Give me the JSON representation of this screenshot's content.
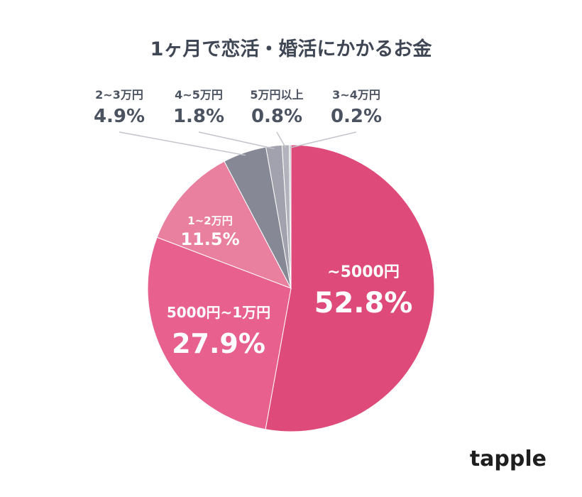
{
  "chart_data": {
    "type": "pie",
    "title": "1ヶ月で恋活・婚活にかかるお金",
    "categories": [
      "~5000円",
      "5000円~1万円",
      "1~2万円",
      "2~3万円",
      "4~5万円",
      "5万円以上",
      "3~4万円"
    ],
    "values": [
      52.8,
      27.9,
      11.5,
      4.9,
      1.8,
      0.8,
      0.2
    ],
    "value_labels": [
      "52.8%",
      "27.9%",
      "11.5%",
      "4.9%",
      "1.8%",
      "0.8%",
      "0.2%"
    ],
    "colors": [
      "#de4a79",
      "#e8608e",
      "#e9809f",
      "#878896",
      "#a1a2ad",
      "#b2b3bd",
      "#c7c8cf"
    ],
    "legend": "none",
    "start_angle_deg": 0,
    "direction": "clockwise"
  },
  "brand": {
    "logo_text": "tapple"
  }
}
